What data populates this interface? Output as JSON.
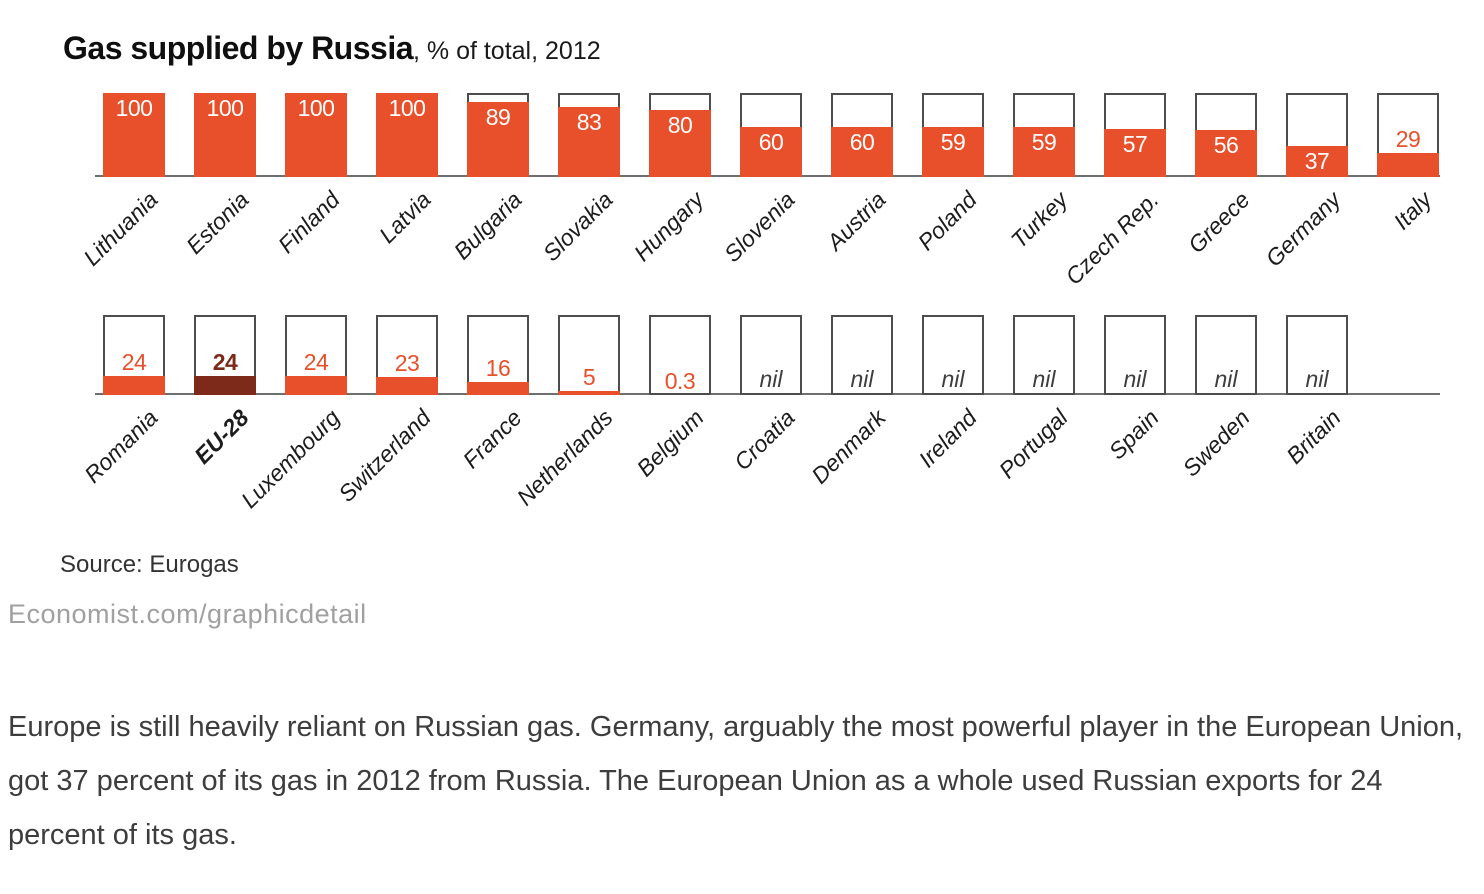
{
  "chart_data": {
    "type": "bar",
    "title": "Gas supplied by Russia",
    "subtitle": ", % of total, 2012",
    "ylim": [
      0,
      100
    ],
    "bar_color": "#E8502B",
    "highlight_color": "#7D2A1B",
    "rows": [
      {
        "bars": [
          {
            "label": "Lithuania",
            "value": 100,
            "display": "100"
          },
          {
            "label": "Estonia",
            "value": 100,
            "display": "100"
          },
          {
            "label": "Finland",
            "value": 100,
            "display": "100"
          },
          {
            "label": "Latvia",
            "value": 100,
            "display": "100"
          },
          {
            "label": "Bulgaria",
            "value": 89,
            "display": "89"
          },
          {
            "label": "Slovakia",
            "value": 83,
            "display": "83"
          },
          {
            "label": "Hungary",
            "value": 80,
            "display": "80"
          },
          {
            "label": "Slovenia",
            "value": 60,
            "display": "60"
          },
          {
            "label": "Austria",
            "value": 60,
            "display": "60"
          },
          {
            "label": "Poland",
            "value": 59,
            "display": "59"
          },
          {
            "label": "Turkey",
            "value": 59,
            "display": "59"
          },
          {
            "label": "Czech Rep.",
            "value": 57,
            "display": "57"
          },
          {
            "label": "Greece",
            "value": 56,
            "display": "56"
          },
          {
            "label": "Germany",
            "value": 37,
            "display": "37"
          },
          {
            "label": "Italy",
            "value": 29,
            "display": "29"
          }
        ]
      },
      {
        "bars": [
          {
            "label": "Romania",
            "value": 24,
            "display": "24"
          },
          {
            "label": "EU-28",
            "value": 24,
            "display": "24",
            "emphasis": true
          },
          {
            "label": "Luxembourg",
            "value": 24,
            "display": "24"
          },
          {
            "label": "Switzerland",
            "value": 23,
            "display": "23"
          },
          {
            "label": "France",
            "value": 16,
            "display": "16"
          },
          {
            "label": "Netherlands",
            "value": 5,
            "display": "5"
          },
          {
            "label": "Belgium",
            "value": 0.3,
            "display": "0.3"
          },
          {
            "label": "Croatia",
            "value": 0,
            "display": "nil"
          },
          {
            "label": "Denmark",
            "value": 0,
            "display": "nil"
          },
          {
            "label": "Ireland",
            "value": 0,
            "display": "nil"
          },
          {
            "label": "Portugal",
            "value": 0,
            "display": "nil"
          },
          {
            "label": "Spain",
            "value": 0,
            "display": "nil"
          },
          {
            "label": "Sweden",
            "value": 0,
            "display": "nil"
          },
          {
            "label": "Britain",
            "value": 0,
            "display": "nil"
          }
        ]
      }
    ],
    "source": "Source: Eurogas",
    "footer": "Economist.com/graphicdetail"
  },
  "caption": {
    "text": "Europe is still heavily reliant on Russian gas. Germany, arguably the most powerful player in the European Union, got 37 percent of its gas in 2012 from Russia. The European Union as a whole used Russian exports for 24 percent of its gas."
  }
}
